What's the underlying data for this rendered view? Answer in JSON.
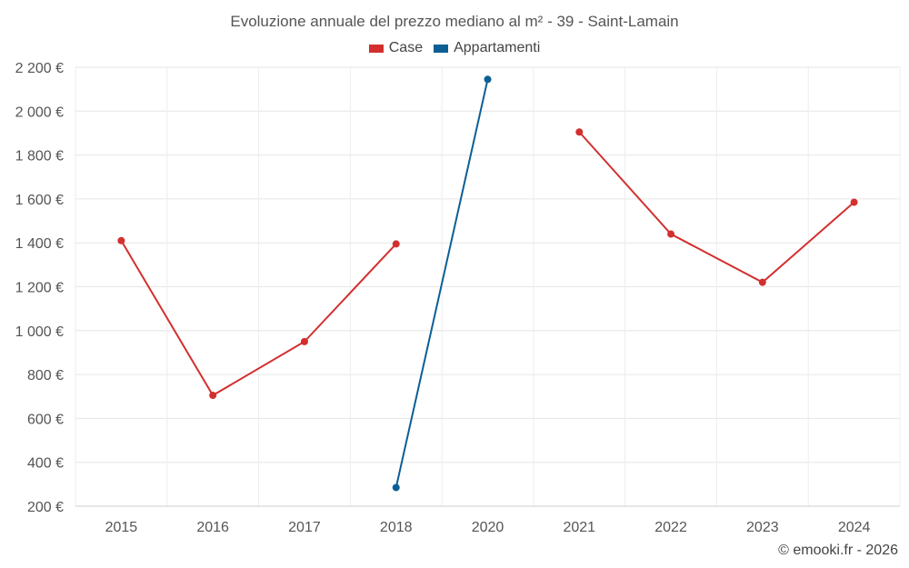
{
  "chart_data": {
    "type": "line",
    "title": "Evoluzione annuale del prezzo mediano al m² - 39 - Saint-Lamain",
    "categories": [
      "2015",
      "2016",
      "2017",
      "2018",
      "2020",
      "2021",
      "2022",
      "2023",
      "2024"
    ],
    "series": [
      {
        "name": "Case",
        "color": "#d32f2f",
        "values": [
          1410,
          705,
          950,
          1395,
          null,
          1905,
          1440,
          1220,
          1585
        ]
      },
      {
        "name": "Appartamenti",
        "color": "#0b5f94",
        "values": [
          null,
          null,
          null,
          285,
          2145,
          null,
          null,
          null,
          null
        ]
      }
    ],
    "y_ticks": [
      "200 €",
      "400 €",
      "600 €",
      "800 €",
      "1 000 €",
      "1 200 €",
      "1 400 €",
      "1 600 €",
      "1 800 €",
      "2 000 €",
      "2 200 €"
    ],
    "ylim": [
      200,
      2200
    ],
    "grid": true,
    "legend_position": "top-center"
  },
  "credit": "© emooki.fr - 2026"
}
